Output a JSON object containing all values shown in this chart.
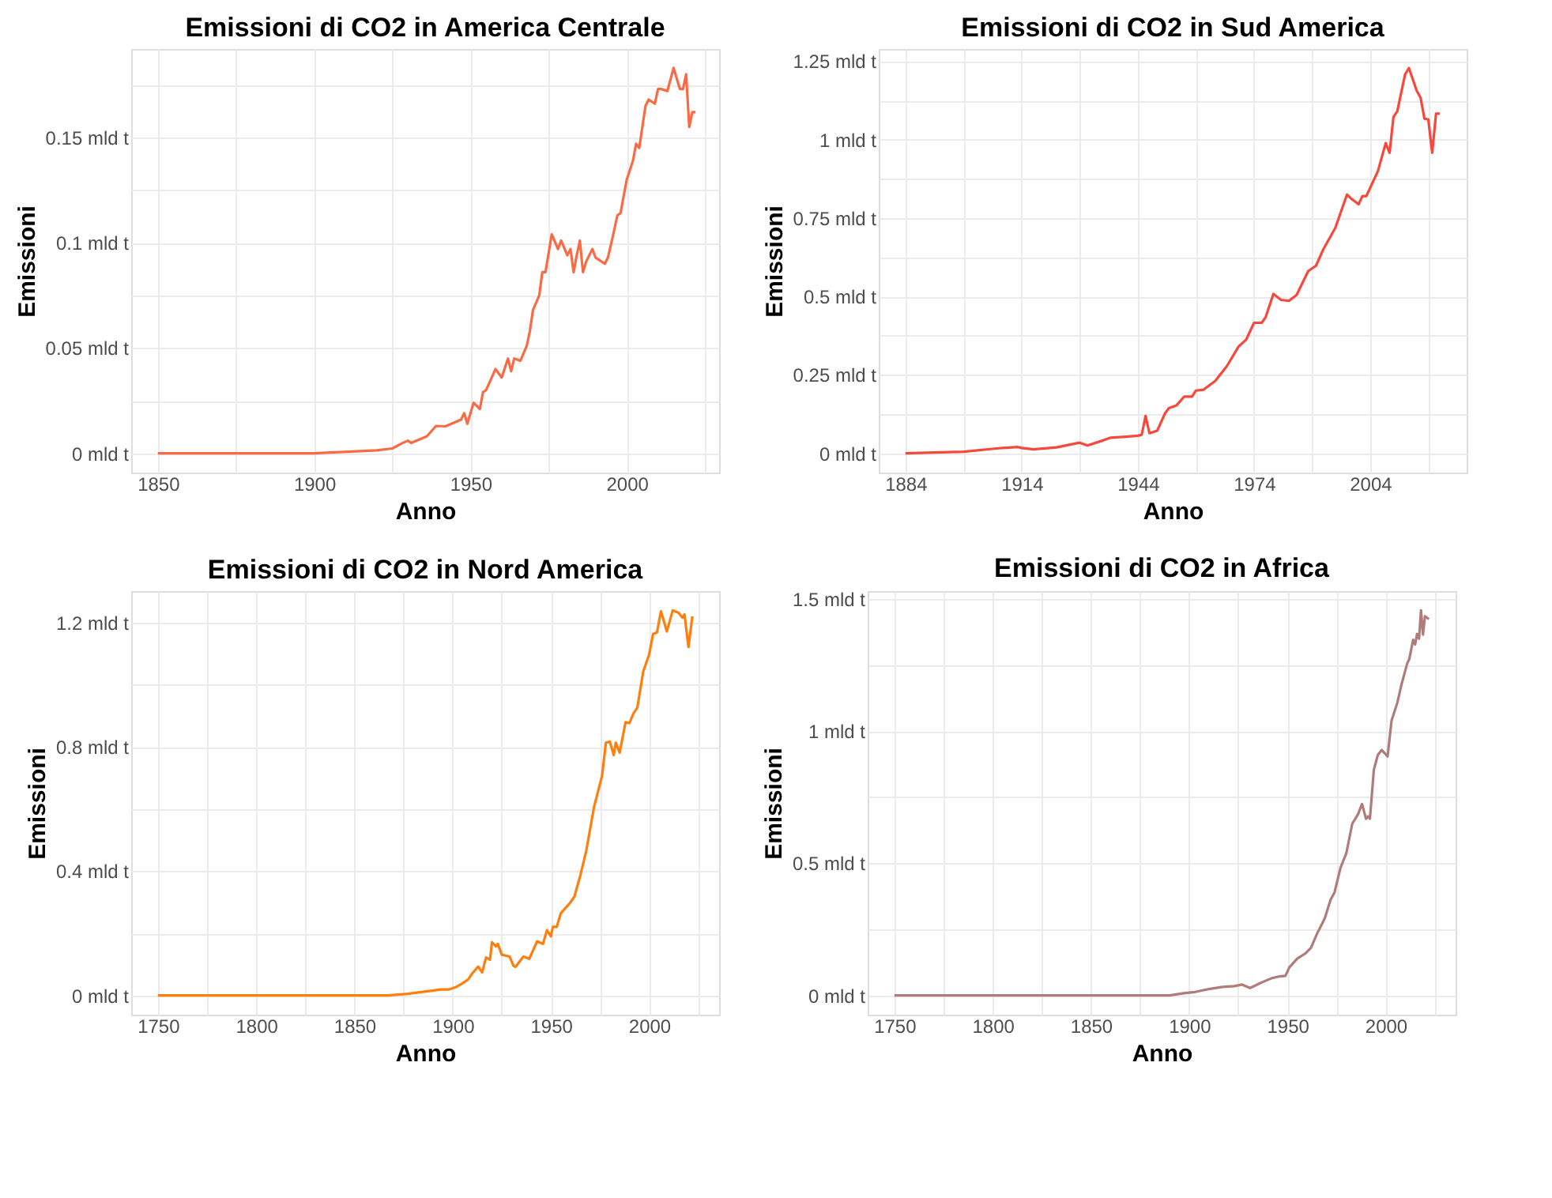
{
  "chart_data": [
    {
      "type": "line",
      "title": "Emissioni di CO2 in America Centrale",
      "xlabel": "Anno",
      "ylabel": "Emissioni",
      "color": "#fc6a45",
      "grid": true,
      "x": [
        1850,
        1900,
        1920,
        1925,
        1928,
        1930,
        1931,
        1936,
        1939,
        1942,
        1947,
        1948,
        1949,
        1951,
        1953,
        1954,
        1955,
        1958,
        1960,
        1962,
        1963,
        1964,
        1966,
        1968,
        1969,
        1970,
        1972,
        1973,
        1974,
        1976,
        1978,
        1979,
        1981,
        1982,
        1983,
        1984,
        1985,
        1986,
        1987,
        1989,
        1990,
        1993,
        1994,
        1996,
        1997,
        1998,
        2000,
        2002,
        2003,
        2004,
        2006,
        2007,
        2009,
        2010,
        2011,
        2013,
        2015,
        2017,
        2018,
        2019,
        2020,
        2021,
        2022
      ],
      "values": [
        0,
        0,
        0.0014,
        0.0023,
        0.0047,
        0.006,
        0.0049,
        0.008,
        0.013,
        0.0128,
        0.016,
        0.019,
        0.014,
        0.024,
        0.021,
        0.029,
        0.03,
        0.04,
        0.036,
        0.045,
        0.039,
        0.045,
        0.044,
        0.051,
        0.058,
        0.068,
        0.075,
        0.086,
        0.086,
        0.104,
        0.097,
        0.101,
        0.094,
        0.097,
        0.086,
        0.094,
        0.101,
        0.086,
        0.091,
        0.097,
        0.093,
        0.09,
        0.093,
        0.106,
        0.113,
        0.114,
        0.13,
        0.139,
        0.147,
        0.145,
        0.165,
        0.168,
        0.166,
        0.173,
        0.173,
        0.172,
        0.183,
        0.173,
        0.173,
        0.18,
        0.155,
        0.162,
        0.162
      ],
      "xlim": [
        1841.45,
        2029.55
      ],
      "ylim": [
        -0.00915,
        0.192
      ],
      "xticks": [
        1850,
        {
          "value": 1875,
          "label": null
        },
        1900,
        {
          "value": 1925,
          "label": null
        },
        1950,
        {
          "value": 1975,
          "label": null
        },
        2000,
        {
          "value": 2025,
          "label": null
        }
      ],
      "yticks": [
        {
          "value": 0,
          "label": "0 mld t"
        },
        {
          "value": 0.025,
          "label": null
        },
        {
          "value": 0.05,
          "label": "0.05 mld t"
        },
        {
          "value": 0.075,
          "label": null
        },
        {
          "value": 0.1,
          "label": "0.1 mld t"
        },
        {
          "value": 0.125,
          "label": null
        },
        {
          "value": 0.15,
          "label": "0.15 mld t"
        },
        {
          "value": 0.175,
          "label": null
        }
      ]
    },
    {
      "type": "line",
      "title": "Emissioni di CO2 in Sud America",
      "xlabel": "Anno",
      "ylabel": "Emissioni",
      "color": "#f8473b",
      "grid": true,
      "x": [
        1884,
        1899,
        1908,
        1913,
        1914,
        1917,
        1923,
        1929,
        1931,
        1935,
        1937,
        1941,
        1944,
        1945,
        1946,
        1947,
        1949,
        1951,
        1952,
        1954,
        1956,
        1958,
        1959,
        1961,
        1964,
        1967,
        1970,
        1972,
        1974,
        1976,
        1977,
        1979,
        1981,
        1983,
        1985,
        1988,
        1990,
        1992,
        1995,
        1998,
        1999,
        2001,
        2002,
        2003,
        2006,
        2008,
        2009,
        2010,
        2011,
        2013,
        2014,
        2016,
        2017,
        2018,
        2019,
        2020,
        2021,
        2022
      ],
      "values": [
        0,
        0.005,
        0.016,
        0.02,
        0.017,
        0.0125,
        0.019,
        0.034,
        0.025,
        0.041,
        0.05,
        0.053,
        0.056,
        0.059,
        0.119,
        0.064,
        0.072,
        0.127,
        0.144,
        0.153,
        0.181,
        0.181,
        0.2,
        0.203,
        0.231,
        0.278,
        0.34,
        0.363,
        0.416,
        0.416,
        0.434,
        0.508,
        0.489,
        0.486,
        0.505,
        0.581,
        0.598,
        0.653,
        0.719,
        0.825,
        0.813,
        0.794,
        0.82,
        0.82,
        0.9,
        0.989,
        0.958,
        1.072,
        1.091,
        1.208,
        1.228,
        1.156,
        1.134,
        1.067,
        1.064,
        0.958,
        1.083,
        1.083
      ],
      "xlim": [
        1877.1,
        2028.9
      ],
      "ylim": [
        -0.0614,
        1.289
      ],
      "xticks": [
        1884,
        {
          "value": 1899,
          "label": null
        },
        1914,
        {
          "value": 1929,
          "label": null
        },
        1944,
        {
          "value": 1959,
          "label": null
        },
        1974,
        {
          "value": 1989,
          "label": null
        },
        2004,
        {
          "value": 2019,
          "label": null
        }
      ],
      "yticks": [
        {
          "value": 0,
          "label": "0 mld t"
        },
        {
          "value": 0.125,
          "label": null
        },
        {
          "value": 0.25,
          "label": "0.25 mld t"
        },
        {
          "value": 0.375,
          "label": null
        },
        {
          "value": 0.5,
          "label": "0.5 mld t"
        },
        {
          "value": 0.625,
          "label": null
        },
        {
          "value": 0.75,
          "label": "0.75 mld t"
        },
        {
          "value": 0.875,
          "label": null
        },
        {
          "value": 1,
          "label": "1 mld t"
        },
        {
          "value": 1.125,
          "label": null
        },
        {
          "value": 1.25,
          "label": "1.25 mld t"
        }
      ]
    },
    {
      "type": "line",
      "title": "Emissioni di CO2 in Nord America",
      "xlabel": "Anno",
      "ylabel": "Emissioni",
      "color": "#ff7f0e",
      "grid": true,
      "x": [
        1750,
        1867,
        1877,
        1888,
        1894,
        1898,
        1902,
        1905,
        1908,
        1910,
        1913,
        1915,
        1917,
        1919,
        1920,
        1922,
        1923,
        1925,
        1929,
        1931,
        1932,
        1936,
        1939,
        1943,
        1946,
        1948,
        1950,
        1951,
        1953,
        1955,
        1960,
        1962,
        1965,
        1968,
        1972,
        1976,
        1978,
        1980,
        1982,
        1983,
        1985,
        1988,
        1990,
        1992,
        1994,
        1997,
        2000,
        2002,
        2004,
        2006,
        2009,
        2012,
        2015,
        2017,
        2018,
        2020,
        2022
      ],
      "values": [
        0,
        0,
        0.005,
        0.014,
        0.019,
        0.019,
        0.028,
        0.039,
        0.052,
        0.071,
        0.093,
        0.074,
        0.122,
        0.115,
        0.171,
        0.158,
        0.166,
        0.131,
        0.125,
        0.095,
        0.092,
        0.125,
        0.118,
        0.174,
        0.166,
        0.21,
        0.19,
        0.221,
        0.221,
        0.264,
        0.3,
        0.319,
        0.387,
        0.466,
        0.608,
        0.706,
        0.814,
        0.817,
        0.774,
        0.814,
        0.782,
        0.88,
        0.877,
        0.908,
        0.927,
        1.043,
        1.098,
        1.164,
        1.169,
        1.237,
        1.172,
        1.24,
        1.232,
        1.216,
        1.227,
        1.122,
        1.221
      ],
      "xlim": [
        1736.4,
        2035.6
      ],
      "ylim": [
        -0.062,
        1.302
      ],
      "xticks": [
        1750,
        {
          "value": 1775,
          "label": null
        },
        1800,
        {
          "value": 1825,
          "label": null
        },
        1850,
        {
          "value": 1875,
          "label": null
        },
        1900,
        {
          "value": 1925,
          "label": null
        },
        1950,
        {
          "value": 1975,
          "label": null
        },
        2000,
        {
          "value": 2025,
          "label": null
        }
      ],
      "yticks": [
        {
          "value": 0,
          "label": "0 mld t"
        },
        {
          "value": 0.2,
          "label": null
        },
        {
          "value": 0.4,
          "label": "0.4 mld t"
        },
        {
          "value": 0.6,
          "label": null
        },
        {
          "value": 0.8,
          "label": "0.8 mld t"
        },
        {
          "value": 1.0,
          "label": null
        },
        {
          "value": 1.2,
          "label": "1.2 mld t"
        }
      ]
    },
    {
      "type": "line",
      "title": "Emissioni di CO2 in Africa",
      "xlabel": "Anno",
      "ylabel": "Emissioni",
      "color": "#b07c7a",
      "grid": true,
      "x": [
        1750,
        1890,
        1898,
        1903,
        1910,
        1917,
        1923,
        1927,
        1931,
        1936,
        1942,
        1946,
        1949,
        1951,
        1955,
        1959,
        1962,
        1965,
        1969,
        1972,
        1974,
        1977,
        1980,
        1983,
        1986,
        1988,
        1990,
        1991,
        1992,
        1994,
        1996,
        1998,
        2001,
        2003,
        2006,
        2008,
        2011,
        2012,
        2014,
        2015,
        2016,
        2017,
        2018,
        2019,
        2020,
        2022
      ],
      "values": [
        0,
        0,
        0.009,
        0.013,
        0.024,
        0.032,
        0.035,
        0.041,
        0.028,
        0.046,
        0.065,
        0.072,
        0.074,
        0.106,
        0.139,
        0.158,
        0.18,
        0.232,
        0.291,
        0.362,
        0.39,
        0.482,
        0.538,
        0.649,
        0.686,
        0.724,
        0.668,
        0.677,
        0.668,
        0.853,
        0.909,
        0.928,
        0.904,
        1.039,
        1.108,
        1.174,
        1.256,
        1.271,
        1.345,
        1.327,
        1.367,
        1.349,
        1.456,
        1.364,
        1.434,
        1.423
      ],
      "xlim": [
        1736.4,
        2035.6
      ],
      "ylim": [
        -0.0728,
        1.529
      ],
      "xticks": [
        1750,
        {
          "value": 1775,
          "label": null
        },
        1800,
        {
          "value": 1825,
          "label": null
        },
        1850,
        {
          "value": 1875,
          "label": null
        },
        1900,
        {
          "value": 1925,
          "label": null
        },
        1950,
        {
          "value": 1975,
          "label": null
        },
        2000,
        {
          "value": 2025,
          "label": null
        }
      ],
      "yticks": [
        {
          "value": 0,
          "label": "0 mld t"
        },
        {
          "value": 0.25,
          "label": null
        },
        {
          "value": 0.5,
          "label": "0.5 mld t"
        },
        {
          "value": 0.75,
          "label": null
        },
        {
          "value": 1,
          "label": "1 mld t"
        },
        {
          "value": 1.25,
          "label": null
        },
        {
          "value": 1.5,
          "label": "1.5 mld t"
        }
      ]
    }
  ]
}
